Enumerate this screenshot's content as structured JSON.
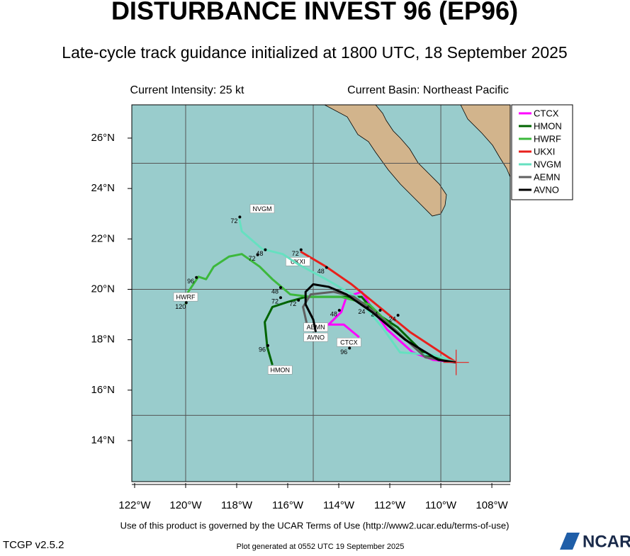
{
  "chart_data": {
    "type": "track",
    "title": "DISTURBANCE INVEST 96 (EP96)",
    "subtitle": "Late-cycle track guidance initialized at 1800 UTC, 18 September 2025",
    "intensity": "Current Intensity: 25 kt",
    "basin": "Current Basin: Northeast Pacific",
    "terms": "Use of this product is governed by the UCAR Terms of Use (http://www2.ucar.edu/terms-of-use)",
    "version": "TCGP v2.5.2",
    "generated": "Plot generated at 0552 UTC   19 September 2025",
    "logo": "NCAR",
    "xlim": [
      -122.11,
      -107.28
    ],
    "ylim": [
      12.37,
      27.32
    ],
    "xticks": [
      {
        "value": -122,
        "label": "122°W"
      },
      {
        "value": -120,
        "label": "120°W"
      },
      {
        "value": -118,
        "label": "118°W"
      },
      {
        "value": -116,
        "label": "116°W"
      },
      {
        "value": -114,
        "label": "114°W"
      },
      {
        "value": -112,
        "label": "112°W"
      },
      {
        "value": -110,
        "label": "110°W"
      },
      {
        "value": -108,
        "label": "108°W"
      }
    ],
    "yticks": [
      {
        "value": 14,
        "label": "14°N"
      },
      {
        "value": 16,
        "label": "16°N"
      },
      {
        "value": 18,
        "label": "18°N"
      },
      {
        "value": 20,
        "label": "20°N"
      },
      {
        "value": 22,
        "label": "22°N"
      },
      {
        "value": 24,
        "label": "24°N"
      },
      {
        "value": 26,
        "label": "26°N"
      }
    ],
    "xgrid": [
      -120,
      -115,
      -110
    ],
    "ygrid": [
      15,
      20,
      25
    ],
    "legend": "right",
    "current_position": [
      -109.4,
      17.1
    ],
    "series": [
      {
        "name": "CTCX",
        "color": "#ff00ff",
        "label_at": [
          -113.6,
          17.9
        ],
        "x": [
          -109.4,
          -110.3,
          -111.1,
          -112.1,
          -112.6,
          -113.1,
          -113.7,
          -113.9,
          -114.4,
          -113.8,
          -113.2
        ],
        "values": [
          17.1,
          17.2,
          17.5,
          18.4,
          19.1,
          19.9,
          19.7,
          19.1,
          18.6,
          18.6,
          18.1
        ]
      },
      {
        "name": "HMON",
        "color": "#006400",
        "label_at": [
          -116.3,
          16.8
        ],
        "x": [
          -109.4,
          -110.6,
          -111.7,
          -112.6,
          -113.1,
          -114.2,
          -115.3,
          -116.0,
          -116.6,
          -116.9,
          -116.8,
          -116.6
        ],
        "values": [
          17.1,
          17.4,
          18.5,
          19.1,
          19.7,
          19.7,
          19.7,
          19.5,
          19.3,
          18.7,
          17.7,
          17.0
        ]
      },
      {
        "name": "HWRF",
        "color": "#3cb83c",
        "label_at": [
          -120.0,
          19.7
        ],
        "x": [
          -109.4,
          -110.6,
          -111.9,
          -112.8,
          -113.9,
          -115.1,
          -115.9,
          -116.6,
          -117.1,
          -117.8,
          -118.3,
          -118.9,
          -119.2,
          -119.5,
          -119.9,
          -120.0
        ],
        "values": [
          17.1,
          17.3,
          18.5,
          19.4,
          19.7,
          19.7,
          19.8,
          20.4,
          20.9,
          21.4,
          21.3,
          20.9,
          20.4,
          20.5,
          19.9,
          19.4
        ]
      },
      {
        "name": "UKXI",
        "color": "#e8201c",
        "label_at": [
          -115.6,
          21.1
        ],
        "x": [
          -109.4,
          -111.2,
          -113.5,
          -114.5,
          -115.5
        ],
        "values": [
          17.1,
          18.3,
          20.2,
          20.9,
          21.5
        ]
      },
      {
        "name": "NVGM",
        "color": "#66e0c0",
        "label_at": [
          -117.0,
          23.2
        ],
        "x": [
          -109.4,
          -110.3,
          -111.6,
          -112.3,
          -113.3,
          -114.5,
          -115.6,
          -116.2,
          -117.0,
          -117.8,
          -117.9
        ],
        "values": [
          17.1,
          17.4,
          17.5,
          18.5,
          19.7,
          20.4,
          21.0,
          21.4,
          21.6,
          22.3,
          22.8
        ]
      },
      {
        "name": "AEMN",
        "color": "#606060",
        "label_at": [
          -114.9,
          18.5
        ],
        "x": [
          -109.4,
          -110.6,
          -111.7,
          -112.6,
          -113.4,
          -114.2,
          -115.1,
          -115.4,
          -115.2
        ],
        "values": [
          17.1,
          17.3,
          18.3,
          19.1,
          19.7,
          19.9,
          19.8,
          19.3,
          18.4
        ]
      },
      {
        "name": "AVNO",
        "color": "#000000",
        "label_at": [
          -114.9,
          18.1
        ],
        "x": [
          -109.4,
          -110.1,
          -111.4,
          -112.7,
          -113.7,
          -114.4,
          -115.0,
          -115.3,
          -115.3,
          -115.0,
          -114.9
        ],
        "values": [
          17.1,
          17.2,
          18.0,
          19.1,
          19.8,
          20.1,
          20.2,
          19.9,
          19.4,
          18.8,
          18.3
        ]
      }
    ],
    "annotations": [
      {
        "text": "72",
        "x": -118.1,
        "y": 22.7
      },
      {
        "text": "48",
        "x": -117.1,
        "y": 21.4
      },
      {
        "text": "72",
        "x": -117.4,
        "y": 21.2
      },
      {
        "text": "96",
        "x": -119.8,
        "y": 20.3
      },
      {
        "text": "120",
        "x": -120.2,
        "y": 19.3
      },
      {
        "text": "48",
        "x": -116.5,
        "y": 19.9
      },
      {
        "text": "72",
        "x": -116.5,
        "y": 19.5
      },
      {
        "text": "72",
        "x": -115.8,
        "y": 19.4
      },
      {
        "text": "96",
        "x": -117.0,
        "y": 17.6
      },
      {
        "text": "48",
        "x": -114.7,
        "y": 20.7
      },
      {
        "text": "48",
        "x": -114.2,
        "y": 19.0
      },
      {
        "text": "24",
        "x": -113.1,
        "y": 19.1
      },
      {
        "text": "24",
        "x": -112.6,
        "y": 19.0
      },
      {
        "text": "24",
        "x": -111.9,
        "y": 18.8
      },
      {
        "text": "96",
        "x": -113.8,
        "y": 17.5
      },
      {
        "text": "72",
        "x": -115.7,
        "y": 21.4
      }
    ]
  }
}
